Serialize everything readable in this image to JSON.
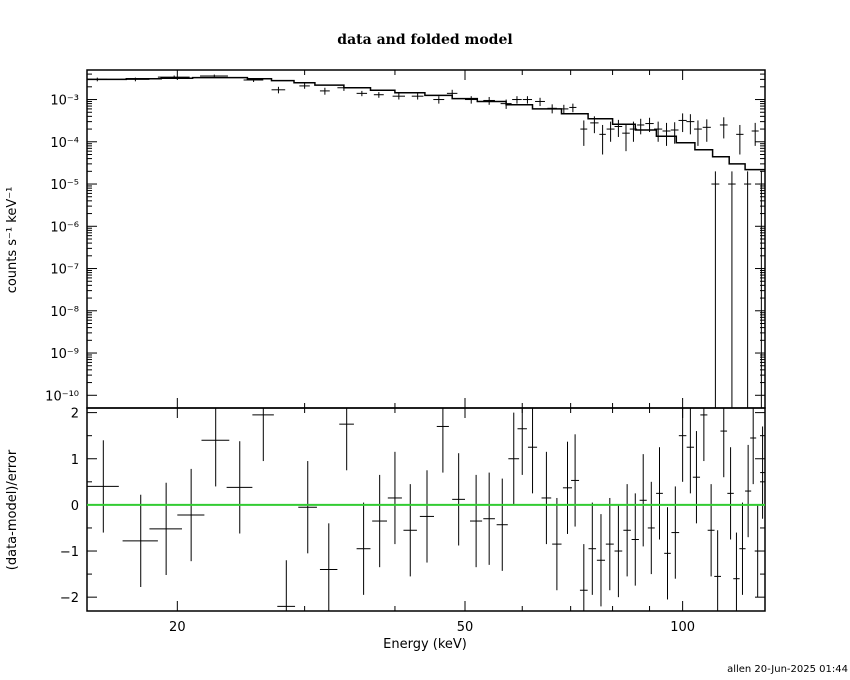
{
  "title": "data and folded model",
  "xlabel": "Energy (keV)",
  "ylabel_top": "counts s⁻¹ keV⁻¹",
  "ylabel_bottom": "(data-model)/error",
  "footer": "allen 20-Jun-2025 01:44",
  "colors": {
    "axes": "#000000",
    "data": "#000000",
    "model": "#000000",
    "zero_line": "#33cc33"
  },
  "chart_data": [
    {
      "type": "scatter",
      "panel": "spectrum",
      "xscale": "log",
      "yscale": "log",
      "xlim": [
        15,
        130
      ],
      "ylim": [
        5e-11,
        0.005
      ],
      "ytick_labels": [
        "10⁻¹⁰",
        "10⁻⁹",
        "10⁻⁸",
        "10⁻⁷",
        "10⁻⁶",
        "10⁻⁵",
        "10⁻⁴",
        "10⁻³"
      ],
      "ytick_values": [
        1e-10,
        1e-09,
        1e-08,
        1e-07,
        1e-06,
        1e-05,
        0.0001,
        0.001
      ],
      "series": [
        {
          "style": "crosses",
          "points": [
            [
              15.5,
              0.003,
              0.5,
              0.0003
            ],
            [
              17.5,
              0.003,
              0.8,
              0.0003
            ],
            [
              19.8,
              0.0034,
              1.0,
              0.0003
            ],
            [
              22.5,
              0.0036,
              1.0,
              0.0003
            ],
            [
              25.5,
              0.0029,
              0.8,
              0.0003
            ],
            [
              27.6,
              0.0017,
              0.6,
              0.0003
            ],
            [
              30.0,
              0.0021,
              0.5,
              0.0003
            ],
            [
              32.0,
              0.0016,
              0.5,
              0.0003
            ],
            [
              34.0,
              0.0019,
              0.7,
              0.0003
            ],
            [
              36.0,
              0.0014,
              0.6,
              0.0002
            ],
            [
              38.0,
              0.0013,
              0.6,
              0.0002
            ],
            [
              40.5,
              0.0012,
              0.8,
              0.0002
            ],
            [
              43.0,
              0.0012,
              0.8,
              0.0002
            ],
            [
              46.0,
              0.001,
              0.8,
              0.0002
            ],
            [
              48.0,
              0.0014,
              0.8,
              0.0003
            ],
            [
              51.0,
              0.001,
              1.0,
              0.0002
            ],
            [
              54.0,
              0.00095,
              1.0,
              0.0002
            ],
            [
              57.0,
              0.0008,
              1.0,
              0.0002
            ],
            [
              59.0,
              0.001,
              0.9,
              0.0002
            ],
            [
              61.0,
              0.001,
              0.9,
              0.0002
            ],
            [
              63.5,
              0.0009,
              1.0,
              0.0002
            ],
            [
              66.0,
              0.00062,
              1.0,
              0.00015
            ],
            [
              68.5,
              0.0006,
              1.0,
              0.00015
            ],
            [
              70.5,
              0.00065,
              0.8,
              0.00015
            ],
            [
              73.0,
              0.0002,
              0.8,
              0.00012
            ],
            [
              75.5,
              0.00028,
              1.0,
              0.00012
            ],
            [
              77.5,
              0.00015,
              0.8,
              0.0001
            ],
            [
              79.5,
              0.0002,
              1.0,
              0.0001
            ],
            [
              81.5,
              0.00023,
              1.0,
              0.0001
            ],
            [
              83.5,
              0.00016,
              1.0,
              0.0001
            ],
            [
              85.5,
              0.0002,
              1.0,
              0.0001
            ],
            [
              87.5,
              0.00025,
              1.0,
              0.0001
            ],
            [
              90.0,
              0.00027,
              1.2,
              0.0001
            ],
            [
              92.5,
              0.0002,
              1.2,
              0.0001
            ],
            [
              95.0,
              0.00018,
              1.2,
              0.0001
            ],
            [
              97.5,
              0.00019,
              1.2,
              0.0001
            ],
            [
              100.0,
              0.00032,
              1.3,
              0.00015
            ],
            [
              102.5,
              0.0003,
              1.3,
              0.00015
            ],
            [
              105.0,
              0.0002,
              1.3,
              0.00012
            ],
            [
              108.0,
              0.00022,
              1.4,
              0.00012
            ],
            [
              111.0,
              1e-05,
              1.4,
              1e-05
            ],
            [
              114.0,
              0.00025,
              1.4,
              0.00013
            ],
            [
              117.0,
              1e-05,
              1.4,
              1e-05
            ],
            [
              120.0,
              0.00015,
              1.4,
              0.0001
            ],
            [
              123.0,
              1e-05,
              1.4,
              1e-05
            ],
            [
              126.0,
              0.00018,
              1.4,
              0.0001
            ],
            [
              128.5,
              1e-05,
              1.0,
              1e-05
            ]
          ]
        },
        {
          "style": "step",
          "name": "",
          "x": [
            15,
            17,
            19,
            21,
            23,
            25,
            27,
            29,
            31,
            34,
            37,
            40,
            44,
            48,
            52,
            57,
            62,
            68,
            74,
            80,
            86,
            92,
            98,
            104,
            110,
            116,
            122,
            130
          ],
          "y": [
            0.003,
            0.0031,
            0.0032,
            0.0033,
            0.0033,
            0.0031,
            0.0028,
            0.0025,
            0.0022,
            0.0019,
            0.00165,
            0.00145,
            0.00125,
            0.00105,
            0.0009,
            0.00075,
            0.0006,
            0.00046,
            0.00035,
            0.00026,
            0.00019,
            0.000135,
            9.5e-05,
            6.5e-05,
            4.4e-05,
            3e-05,
            2.2e-05,
            1.4e-05
          ]
        }
      ]
    },
    {
      "type": "scatter",
      "panel": "residuals",
      "xscale": "log",
      "xlim": [
        15,
        130
      ],
      "ylim": [
        -2.3,
        2.1
      ],
      "xtick_labels": [
        "20",
        "50",
        "100"
      ],
      "xtick_values": [
        20,
        50,
        100
      ],
      "ytick_labels": [
        "2",
        "1",
        "0",
        "−1",
        "−2"
      ],
      "ytick_values": [
        2,
        1,
        0,
        -1,
        -2
      ],
      "zero_line": 0,
      "points": [
        [
          15.8,
          0.4,
          0.8,
          1.0
        ],
        [
          17.8,
          -0.78,
          1.0,
          1.0
        ],
        [
          19.3,
          -0.52,
          1.0,
          1.0
        ],
        [
          20.9,
          -0.22,
          0.9,
          1.0
        ],
        [
          22.6,
          1.4,
          1.0,
          1.0
        ],
        [
          24.4,
          0.38,
          1.0,
          1.0
        ],
        [
          26.3,
          1.95,
          0.9,
          1.0
        ],
        [
          28.3,
          -2.2,
          0.8,
          1.0
        ],
        [
          30.3,
          -0.05,
          0.9,
          1.0
        ],
        [
          32.4,
          -1.4,
          0.9,
          1.0
        ],
        [
          34.3,
          1.75,
          0.8,
          1.0
        ],
        [
          36.2,
          -0.95,
          0.8,
          1.0
        ],
        [
          38.1,
          -0.35,
          0.9,
          1.0
        ],
        [
          40.0,
          0.15,
          0.9,
          1.0
        ],
        [
          42.0,
          -0.55,
          0.9,
          1.0
        ],
        [
          44.3,
          -0.25,
          1.0,
          1.0
        ],
        [
          46.6,
          1.7,
          0.9,
          1.0
        ],
        [
          49.0,
          0.12,
          1.0,
          1.0
        ],
        [
          51.8,
          -0.35,
          1.0,
          1.0
        ],
        [
          54.0,
          -0.3,
          1.0,
          1.0
        ],
        [
          56.3,
          -0.43,
          1.0,
          1.0
        ],
        [
          58.4,
          1.0,
          1.0,
          1.0
        ],
        [
          60.0,
          1.65,
          0.9,
          1.0
        ],
        [
          62.0,
          1.25,
          0.9,
          1.0
        ],
        [
          64.8,
          0.15,
          1.0,
          1.0
        ],
        [
          67.0,
          -0.85,
          1.0,
          1.0
        ],
        [
          69.3,
          0.37,
          1.0,
          1.0
        ],
        [
          71.0,
          0.53,
          0.9,
          1.0
        ],
        [
          73.0,
          -1.85,
          0.9,
          1.0
        ],
        [
          75.0,
          -0.95,
          0.9,
          1.0
        ],
        [
          77.1,
          -1.2,
          1.0,
          1.0
        ],
        [
          79.3,
          -0.85,
          1.0,
          1.0
        ],
        [
          81.5,
          -1.0,
          1.0,
          1.0
        ],
        [
          83.8,
          -0.55,
          1.0,
          1.0
        ],
        [
          86.0,
          -0.75,
          1.0,
          1.0
        ],
        [
          88.2,
          0.1,
          1.0,
          1.0
        ],
        [
          90.5,
          -0.5,
          1.0,
          1.0
        ],
        [
          92.9,
          0.25,
          1.0,
          1.0
        ],
        [
          95.3,
          -1.05,
          1.0,
          1.0
        ],
        [
          97.7,
          -0.6,
          1.2,
          1.0
        ],
        [
          100.0,
          1.5,
          1.2,
          1.0
        ],
        [
          102.5,
          1.25,
          1.2,
          1.0
        ],
        [
          104.5,
          0.6,
          1.2,
          1.0
        ],
        [
          107.0,
          1.95,
          1.2,
          1.0
        ],
        [
          109.5,
          -0.55,
          1.2,
          1.0
        ],
        [
          111.8,
          -1.55,
          1.2,
          1.0
        ],
        [
          114.0,
          1.6,
          1.2,
          1.0
        ],
        [
          116.5,
          0.25,
          1.2,
          1.0
        ],
        [
          118.7,
          -1.6,
          1.2,
          1.0
        ],
        [
          121.0,
          -0.95,
          1.2,
          1.0
        ],
        [
          123.2,
          0.3,
          1.2,
          1.0
        ],
        [
          125.2,
          1.45,
          1.2,
          1.0
        ],
        [
          127.0,
          -1.0,
          1.2,
          1.0
        ],
        [
          129.0,
          0.7,
          1.0,
          1.0
        ]
      ]
    }
  ]
}
